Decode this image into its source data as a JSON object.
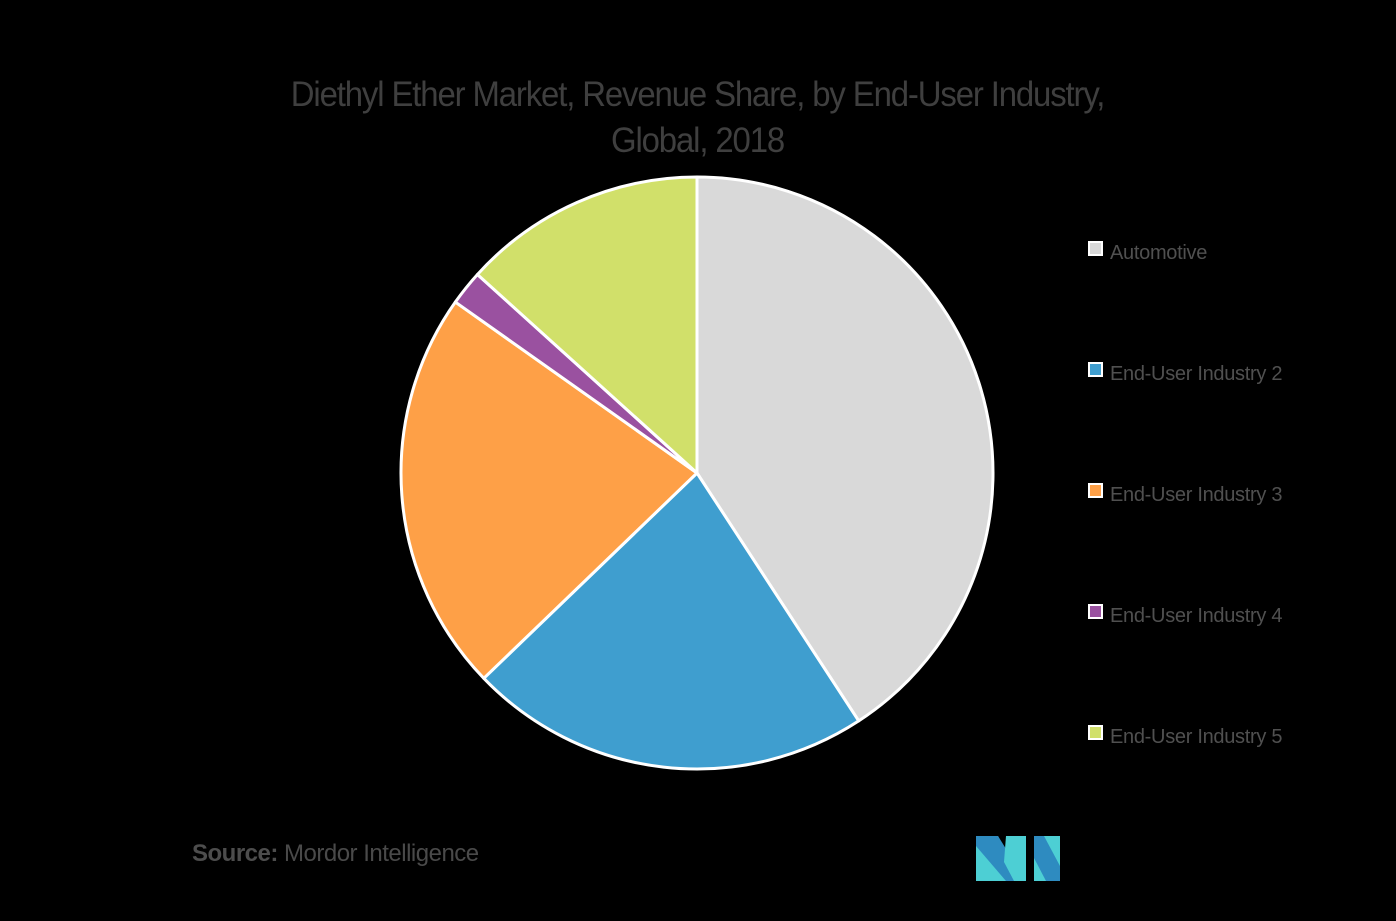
{
  "chart_data": {
    "type": "pie",
    "title": "Diethyl Ether Market, Revenue Share, by End-User Industry, Global, 2018",
    "title_lines": [
      "Diethyl Ether Market, Revenue Share, by End-User Industry,",
      "Global, 2018"
    ],
    "start_angle_deg": 0,
    "direction": "clockwise",
    "categories": [
      "Automotive",
      "End-User Industry 2",
      "End-User Industry 3",
      "End-User Industry 4",
      "End-User Industry 5"
    ],
    "values": [
      40.8,
      22.0,
      22.0,
      1.9,
      13.3
    ],
    "unit": "% (estimated from slice angles, no data labels shown)",
    "colors": [
      "#d9d9d9",
      "#3f9ecf",
      "#fea047",
      "#9a51a0",
      "#d1e06a"
    ],
    "legend_position": "right",
    "slice_border_color": "#ffffff"
  },
  "legend": {
    "items": [
      {
        "label": "Automotive",
        "color": "#d9d9d9"
      },
      {
        "label": "End-User Industry 2",
        "color": "#3f9ecf"
      },
      {
        "label": "End-User Industry 3",
        "color": "#fea047"
      },
      {
        "label": "End-User Industry 4",
        "color": "#9a51a0"
      },
      {
        "label": "End-User Industry 5",
        "color": "#d1e06a"
      }
    ]
  },
  "footer": {
    "source_key": "Source:",
    "source_value": " Mordor Intelligence",
    "logo_icon": "mordor-intelligence-logo-icon",
    "logo_colors": {
      "dark": "#2e8bc0",
      "light": "#4dcfd4"
    }
  }
}
